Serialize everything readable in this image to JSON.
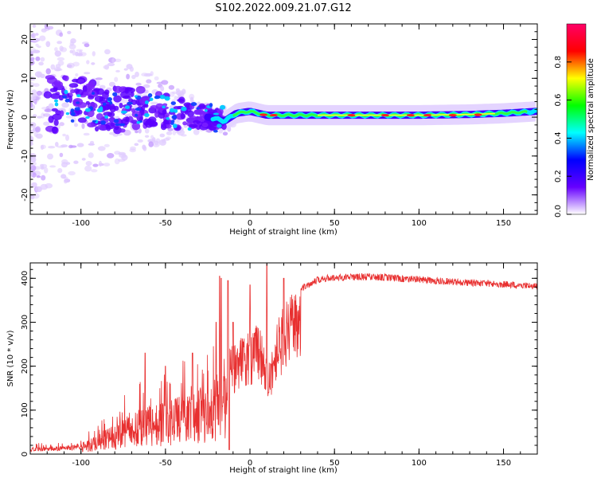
{
  "title": "S102.2022.009.21.07.G12",
  "chart_data": [
    {
      "type": "heatmap",
      "xlabel": "Height of straight line (km)",
      "ylabel": "Frequency (Hz)",
      "xlim": [
        -130,
        170
      ],
      "ylim": [
        -25,
        24
      ],
      "xticks": [
        -100,
        -50,
        0,
        50,
        100,
        150
      ],
      "yticks": [
        -20,
        -10,
        0,
        10,
        20
      ],
      "colorbar": {
        "label": "Normalized spectral amplitude",
        "range": [
          0,
          1
        ],
        "ticks": [
          "0.0",
          "0.2",
          "0.4",
          "0.6",
          "0.8"
        ],
        "colors": [
          "#ffffff",
          "#6600ff",
          "#0000ff",
          "#00ffff",
          "#00ff00",
          "#ffff00",
          "#ff0000",
          "#ff0066"
        ]
      },
      "ridge": [
        [
          -120,
          3
        ],
        [
          -100,
          3
        ],
        [
          -80,
          2
        ],
        [
          -60,
          2
        ],
        [
          -40,
          1
        ],
        [
          -25,
          0
        ],
        [
          -15,
          -1
        ],
        [
          -8,
          1
        ],
        [
          0,
          1.5
        ],
        [
          10,
          0.5
        ],
        [
          20,
          0.5
        ],
        [
          50,
          0.5
        ],
        [
          100,
          0.5
        ],
        [
          130,
          0.7
        ],
        [
          150,
          1
        ],
        [
          170,
          1.5
        ]
      ]
    },
    {
      "type": "line",
      "xlabel": "Height of straight line (km)",
      "ylabel": "SNR (10 * v/v)",
      "xlim": [
        -130,
        170
      ],
      "ylim": [
        0,
        435
      ],
      "xticks": [
        -100,
        -50,
        0,
        50,
        100,
        150
      ],
      "yticks": [
        0,
        100,
        200,
        300,
        400
      ],
      "color": "#e83030",
      "envelope": [
        [
          -130,
          15
        ],
        [
          -110,
          18
        ],
        [
          -100,
          25
        ],
        [
          -90,
          45
        ],
        [
          -80,
          70
        ],
        [
          -70,
          95
        ],
        [
          -60,
          110
        ],
        [
          -50,
          120
        ],
        [
          -40,
          135
        ],
        [
          -30,
          150
        ],
        [
          -20,
          180
        ],
        [
          -13,
          195
        ],
        [
          -12,
          240
        ],
        [
          -5,
          270
        ],
        [
          0,
          280
        ],
        [
          5,
          300
        ],
        [
          10,
          240
        ],
        [
          12,
          230
        ],
        [
          15,
          290
        ],
        [
          20,
          340
        ],
        [
          25,
          365
        ],
        [
          30,
          385
        ],
        [
          40,
          405
        ],
        [
          50,
          410
        ],
        [
          60,
          412
        ],
        [
          80,
          410
        ],
        [
          100,
          405
        ],
        [
          120,
          400
        ],
        [
          140,
          396
        ],
        [
          160,
          392
        ],
        [
          170,
          390
        ]
      ],
      "spikes": [
        [
          -62,
          230
        ],
        [
          -50,
          200
        ],
        [
          -34,
          230
        ],
        [
          -20,
          300
        ],
        [
          -18,
          405
        ],
        [
          -17,
          400
        ],
        [
          -13,
          395
        ],
        [
          -10,
          300
        ],
        [
          0,
          385
        ],
        [
          10,
          432
        ],
        [
          11,
          140
        ],
        [
          20,
          400
        ]
      ]
    }
  ]
}
